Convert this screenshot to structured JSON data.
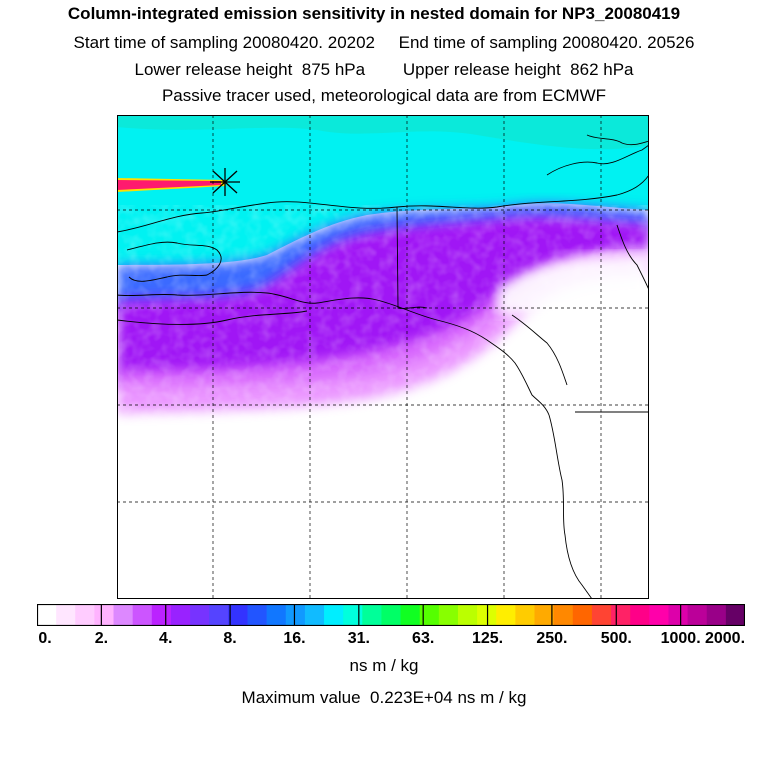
{
  "header": {
    "title": "Column-integrated emission sensitivity in nested domain for NP3_20080419",
    "sampling_line": "Start time of sampling 20080420. 20202     End time of sampling 20080420. 20526",
    "release_line": "Lower release height  875 hPa        Upper release height  862 hPa",
    "info_line": "Passive tracer used, meteorological data are from ECMWF"
  },
  "colorbar": {
    "tick_labels": [
      "0.",
      "2.",
      "4.",
      "8.",
      "16.",
      "31.",
      "63.",
      "125.",
      "250.",
      "500.",
      "1000.",
      "2000."
    ],
    "units": "ns m / kg",
    "colors": [
      "#ffffff",
      "#ffe6ff",
      "#ffccff",
      "#ffb3ff",
      "#dd88ff",
      "#cc55ff",
      "#bb22ff",
      "#9922ff",
      "#7733ff",
      "#5544ff",
      "#3333ff",
      "#2255ff",
      "#1177ff",
      "#1199ff",
      "#11bbff",
      "#00eeff",
      "#00ffdd",
      "#00ff99",
      "#00ff66",
      "#11ff22",
      "#55ff00",
      "#88ff00",
      "#bbff00",
      "#ddff00",
      "#ffee00",
      "#ffcc00",
      "#ffaa00",
      "#ff8800",
      "#ff6600",
      "#ff4433",
      "#ff2266",
      "#ff0088",
      "#ff00aa",
      "#dd00aa",
      "#bb0099",
      "#990088",
      "#660066"
    ]
  },
  "footer": {
    "max_value": "Maximum value  0.223E+04 ns m / kg"
  }
}
